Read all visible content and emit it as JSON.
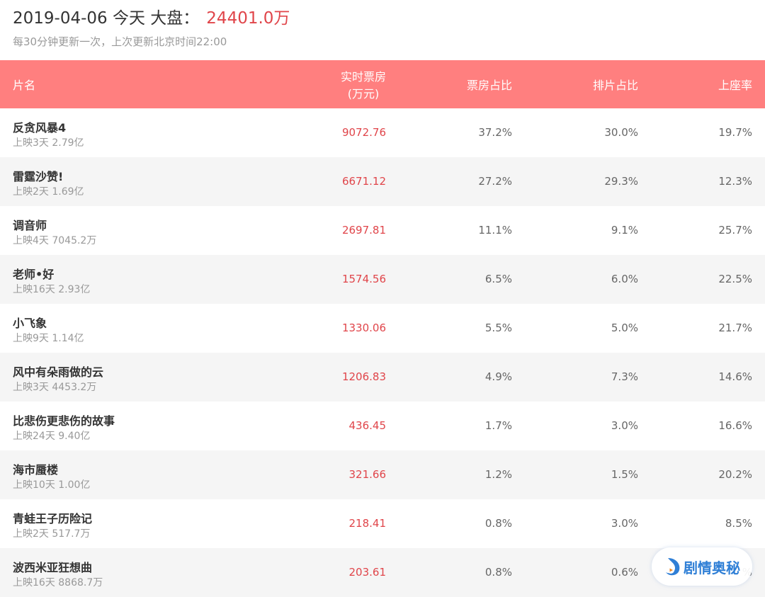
{
  "header": {
    "date": "2019-04-06",
    "today": "今天",
    "market_label": "大盘：",
    "total": "24401.0万",
    "update_note": "每30分钟更新一次，上次更新北京时间22:00"
  },
  "columns": {
    "name": "片名",
    "box_office": "实时票房",
    "box_office_unit": "(万元)",
    "box_share": "票房占比",
    "show_share": "排片占比",
    "seat_rate": "上座率"
  },
  "colors": {
    "header_bg": "#ff7f7f",
    "accent": "#e0454a"
  },
  "movies": [
    {
      "name": "反贪风暴4",
      "meta": "上映3天  2.79亿",
      "box": "9072.76",
      "box_share": "37.2%",
      "show_share": "30.0%",
      "seat": "19.7%"
    },
    {
      "name": "雷霆沙赞!",
      "meta": "上映2天  1.69亿",
      "box": "6671.12",
      "box_share": "27.2%",
      "show_share": "29.3%",
      "seat": "12.3%"
    },
    {
      "name": "调音师",
      "meta": "上映4天  7045.2万",
      "box": "2697.81",
      "box_share": "11.1%",
      "show_share": "9.1%",
      "seat": "25.7%"
    },
    {
      "name": "老师•好",
      "meta": "上映16天  2.93亿",
      "box": "1574.56",
      "box_share": "6.5%",
      "show_share": "6.0%",
      "seat": "22.5%"
    },
    {
      "name": "小飞象",
      "meta": "上映9天  1.14亿",
      "box": "1330.06",
      "box_share": "5.5%",
      "show_share": "5.0%",
      "seat": "21.7%"
    },
    {
      "name": "风中有朵雨做的云",
      "meta": "上映3天  4453.2万",
      "box": "1206.83",
      "box_share": "4.9%",
      "show_share": "7.3%",
      "seat": "14.6%"
    },
    {
      "name": "比悲伤更悲伤的故事",
      "meta": "上映24天  9.40亿",
      "box": "436.45",
      "box_share": "1.7%",
      "show_share": "3.0%",
      "seat": "16.6%"
    },
    {
      "name": "海市蜃楼",
      "meta": "上映10天  1.00亿",
      "box": "321.66",
      "box_share": "1.2%",
      "show_share": "1.5%",
      "seat": "20.2%"
    },
    {
      "name": "青蛙王子历险记",
      "meta": "上映2天  517.7万",
      "box": "218.41",
      "box_share": "0.8%",
      "show_share": "3.0%",
      "seat": "8.5%"
    },
    {
      "name": "波西米亚狂想曲",
      "meta": "上映16天  8868.7万",
      "box": "203.61",
      "box_share": "0.8%",
      "show_share": "0.6%",
      "seat": "%"
    }
  ],
  "watermark": {
    "text": "剧情奥秘",
    "icon": "play-logo-icon"
  }
}
